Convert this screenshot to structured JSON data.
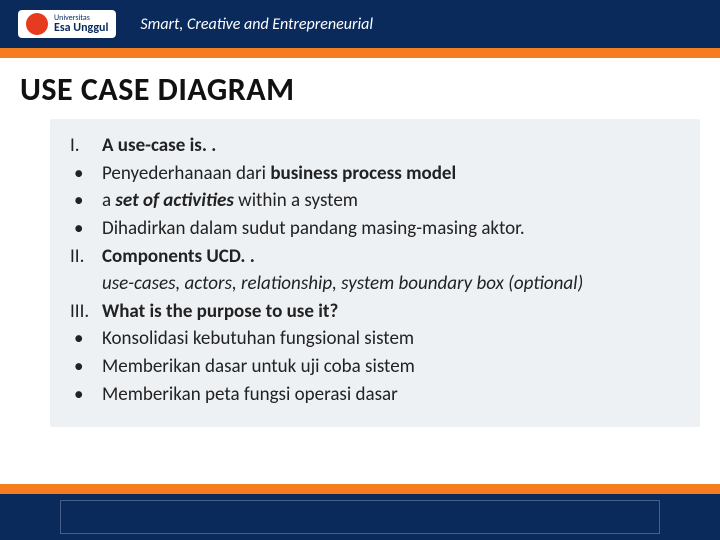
{
  "colors": {
    "banner_blue": "#0a2a5c",
    "banner_orange": "#f57c1f",
    "logo_red": "#e63b1f",
    "content_bg": "#eef1f4",
    "text": "#111111"
  },
  "header": {
    "logo_name": "Esa Unggul",
    "logo_prefix": "Universitas",
    "tagline": "Smart, Creative and Entrepreneurial"
  },
  "title": "USE CASE DIAGRAM",
  "content": {
    "section1": {
      "marker": "I.",
      "heading": "A use-case is. .",
      "bullets": [
        {
          "text_before": "Penyederhanaan dari ",
          "bold": "business process model",
          "text_after": ""
        },
        {
          "text_before": "a ",
          "italic_bold": "set of activities",
          "text_after": " within a system"
        },
        {
          "text_before": "Dihadirkan dalam sudut pandang masing-masing aktor.",
          "bold": "",
          "text_after": ""
        }
      ]
    },
    "section2": {
      "marker": "II.",
      "heading": "Components UCD. .",
      "italic_line": "use-cases, actors, relationship, system boundary box (optional)"
    },
    "section3": {
      "marker": "III.",
      "heading": "What is the purpose to use it?",
      "bullets": [
        "Konsolidasi kebutuhan fungsional sistem",
        "Memberikan dasar untuk uji coba sistem",
        "Memberikan peta fungsi operasi dasar"
      ]
    }
  }
}
